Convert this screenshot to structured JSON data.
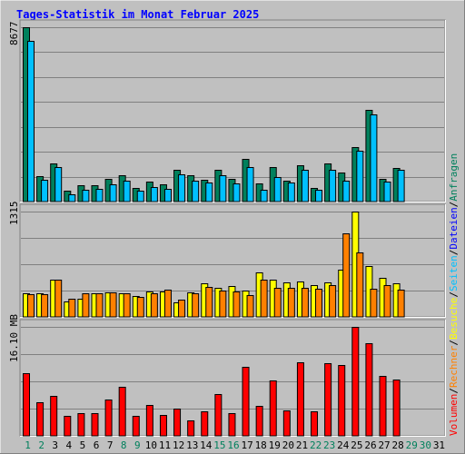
{
  "title": "Tages-Statistik im Monat Februar 2025",
  "colors": {
    "background": "#c0c0c0",
    "title": "#0000ff",
    "hits": "#00805c",
    "files": "#00c0ff",
    "sites": "#ff8000",
    "visits": "#ffff00",
    "kbytes": "#ff0000",
    "weekend": "#00805c",
    "weekday": "#000000"
  },
  "legend": {
    "anfragen": "Anfragen",
    "dateien": "Dateien",
    "seiten": "Seiten",
    "besuche": "Besuche",
    "rechner": "Rechner",
    "volumen": "Volumen",
    "sep": "/"
  },
  "chart_data": {
    "type": "bar",
    "categories": [
      "1",
      "2",
      "3",
      "4",
      "5",
      "6",
      "7",
      "8",
      "9",
      "10",
      "11",
      "12",
      "13",
      "14",
      "15",
      "16",
      "17",
      "18",
      "19",
      "20",
      "21",
      "22",
      "23",
      "24",
      "25",
      "26",
      "27",
      "28",
      "29",
      "30",
      "31"
    ],
    "weekend_days": [
      "1",
      "2",
      "8",
      "9",
      "15",
      "16",
      "22",
      "23",
      "29",
      "30"
    ],
    "panels": [
      {
        "max_label": "8677",
        "ylim": [
          0,
          8677
        ],
        "series": [
          {
            "name": "Anfragen",
            "color": "#00805c",
            "values": [
              8677,
              1260,
              1900,
              560,
              820,
              820,
              1120,
              1300,
              700,
              980,
              850,
              1600,
              1300,
              1100,
              1570,
              1130,
              2130,
              900,
              1730,
              1040,
              1810,
              700,
              1890,
              1460,
              2720,
              4560,
              1130,
              1680,
              null,
              null,
              null
            ]
          },
          {
            "name": "Dateien",
            "color": "#00c0ff",
            "values": [
              7980,
              1080,
              1720,
              380,
              600,
              640,
              880,
              1020,
              520,
              740,
              650,
              1350,
              1020,
              930,
              1300,
              900,
              1730,
              600,
              1220,
              960,
              1600,
              610,
              1570,
              1060,
              2530,
              4330,
              1000,
              1560,
              null,
              null,
              null
            ]
          }
        ]
      },
      {
        "max_label": "1315",
        "ylim": [
          0,
          1315
        ],
        "series": [
          {
            "name": "Besuche",
            "color": "#ffff00",
            "values": [
              290,
              290,
              470,
              190,
              230,
              300,
              310,
              290,
              260,
              320,
              320,
              180,
              310,
              420,
              360,
              390,
              330,
              560,
              460,
              430,
              440,
              400,
              430,
              590,
              1315,
              630,
              490,
              420,
              null,
              null,
              null
            ]
          },
          {
            "name": "Seiten",
            "color": "#ff8000",
            "values": [
              280,
              280,
              460,
              230,
              290,
              290,
              310,
              300,
              250,
              300,
              340,
              210,
              290,
              370,
              330,
              320,
              270,
              470,
              360,
              360,
              360,
              350,
              400,
              1040,
              810,
              350,
              400,
              340,
              null,
              null,
              null
            ]
          }
        ]
      },
      {
        "max_label": "16.10 MB",
        "ylim": [
          0,
          16.1
        ],
        "series": [
          {
            "name": "Volumen",
            "color": "#ff0000",
            "values": [
              9.3,
              5.0,
              5.9,
              2.9,
              3.3,
              3.3,
              5.3,
              7.2,
              2.9,
              4.6,
              3.1,
              4.0,
              2.3,
              3.6,
              6.2,
              3.4,
              10.2,
              4.4,
              8.2,
              3.7,
              10.9,
              3.6,
              10.7,
              10.4,
              16.1,
              13.7,
              8.9,
              8.3,
              null,
              null,
              null
            ]
          }
        ]
      }
    ]
  }
}
